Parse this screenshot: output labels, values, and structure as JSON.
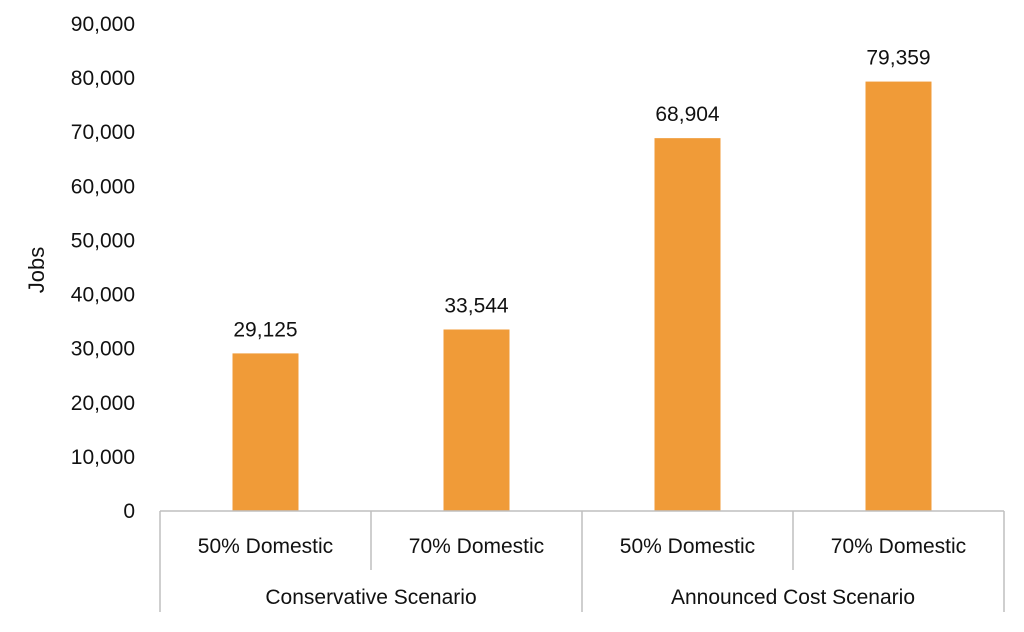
{
  "chart_data": {
    "type": "bar",
    "title": "",
    "xlabel": "",
    "ylabel": "Jobs",
    "ylim": [
      0,
      90000
    ],
    "y_ticks": [
      0,
      10000,
      20000,
      30000,
      40000,
      50000,
      60000,
      70000,
      80000,
      90000
    ],
    "y_tick_labels": [
      "0",
      "10,000",
      "20,000",
      "30,000",
      "40,000",
      "50,000",
      "60,000",
      "70,000",
      "80,000",
      "90,000"
    ],
    "categories": [
      "50% Domestic",
      "70% Domestic",
      "50% Domestic",
      "70% Domestic"
    ],
    "groups": [
      {
        "label": "Conservative Scenario",
        "categories": [
          0,
          1
        ]
      },
      {
        "label": "Announced Cost Scenario",
        "categories": [
          2,
          3
        ]
      }
    ],
    "values": [
      29125,
      33544,
      68904,
      79359
    ],
    "data_labels": [
      "29,125",
      "33,544",
      "68,904",
      "79,359"
    ],
    "bar_color": "#F09B38",
    "axis_color": "#BFBFBF",
    "grid": false,
    "legend": "none"
  }
}
